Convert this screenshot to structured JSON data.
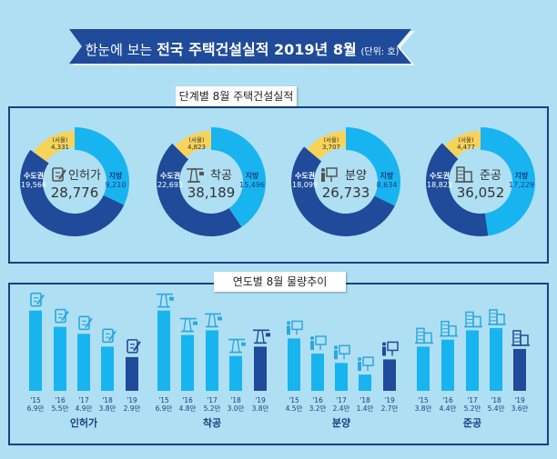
{
  "title": {
    "prefix": "한눈에 보는",
    "main": "전국 주택건설실적 2019년 8월",
    "unit": "(단위: 호)"
  },
  "colors": {
    "background": "#afdff2",
    "navy": "#1c3f86",
    "local": "#18b4f0",
    "capital": "#1f4b9a",
    "seoul": "#f7d35a",
    "bar": "#18b4f0",
    "bar_current": "#1f4b9a"
  },
  "section1": {
    "label": "단계별 8월 주택건설실적"
  },
  "section2": {
    "label": "연도별 8월 물량추이"
  },
  "chart_data": [
    {
      "type": "pie",
      "title": "인허가",
      "total": "28,776",
      "icon": "permit-document-icon",
      "slices": [
        {
          "name": "지방",
          "value": 9210,
          "label": "9,210"
        },
        {
          "name": "수도권",
          "value": 19566,
          "label": "19,566"
        },
        {
          "name": "(서울)",
          "value": 4331,
          "label": "4,331",
          "part_of": "수도권"
        }
      ]
    },
    {
      "type": "pie",
      "title": "착공",
      "total": "38,189",
      "icon": "crane-icon",
      "slices": [
        {
          "name": "지방",
          "value": 15496,
          "label": "15,496"
        },
        {
          "name": "수도권",
          "value": 22693,
          "label": "22,693"
        },
        {
          "name": "(서울)",
          "value": 4823,
          "label": "4,823",
          "part_of": "수도권"
        }
      ]
    },
    {
      "type": "pie",
      "title": "분양",
      "total": "26,733",
      "icon": "presentation-board-icon",
      "slices": [
        {
          "name": "지방",
          "value": 8634,
          "label": "8,634"
        },
        {
          "name": "수도권",
          "value": 18099,
          "label": "18,099"
        },
        {
          "name": "(서울)",
          "value": 3707,
          "label": "3,707",
          "part_of": "수도권"
        }
      ]
    },
    {
      "type": "pie",
      "title": "준공",
      "total": "36,052",
      "icon": "building-icon",
      "slices": [
        {
          "name": "지방",
          "value": 17229,
          "label": "17,229"
        },
        {
          "name": "수도권",
          "value": 18823,
          "label": "18,823"
        },
        {
          "name": "(서울)",
          "value": 4477,
          "label": "4,477",
          "part_of": "수도권"
        }
      ]
    },
    {
      "type": "bar",
      "title": "인허가",
      "icon": "permit-document-icon",
      "categories": [
        "'15",
        "'16",
        "'17",
        "'18",
        "'19"
      ],
      "values": [
        6.9,
        5.5,
        4.9,
        3.8,
        2.9
      ],
      "labels": [
        "6.9만",
        "5.5만",
        "4.9만",
        "3.8만",
        "2.9만"
      ]
    },
    {
      "type": "bar",
      "title": "착공",
      "icon": "crane-icon",
      "categories": [
        "'15",
        "'16",
        "'17",
        "'18",
        "'19"
      ],
      "values": [
        6.9,
        4.8,
        5.2,
        3.0,
        3.8
      ],
      "labels": [
        "6.9만",
        "4.8만",
        "5.2만",
        "3.0만",
        "3.8만"
      ]
    },
    {
      "type": "bar",
      "title": "분양",
      "icon": "presentation-board-icon",
      "categories": [
        "'15",
        "'16",
        "'17",
        "'18",
        "'19"
      ],
      "values": [
        4.5,
        3.2,
        2.4,
        1.4,
        2.7
      ],
      "labels": [
        "4.5만",
        "3.2만",
        "2.4만",
        "1.4만",
        "2.7만"
      ]
    },
    {
      "type": "bar",
      "title": "준공",
      "icon": "building-icon",
      "categories": [
        "'15",
        "'16",
        "'17",
        "'18",
        "'19"
      ],
      "values": [
        3.8,
        4.4,
        5.2,
        5.4,
        3.6
      ],
      "labels": [
        "3.8만",
        "4.4만",
        "5.2만",
        "5.4만",
        "3.6만"
      ]
    }
  ]
}
